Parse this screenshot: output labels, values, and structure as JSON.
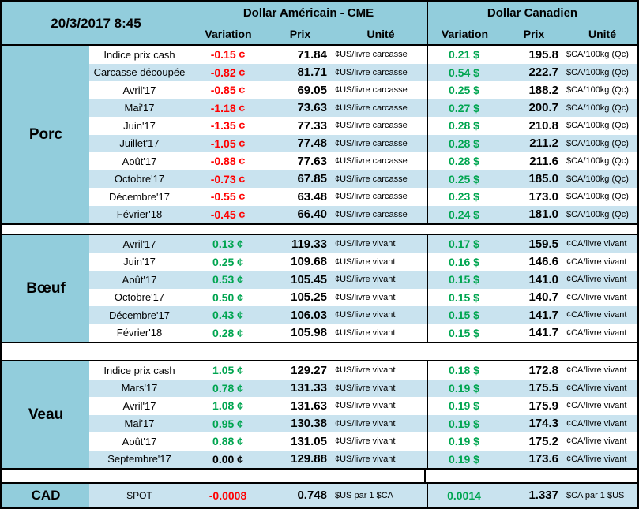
{
  "header": {
    "datetime": "20/3/2017 8:45",
    "us": {
      "title": "Dollar Américain - CME",
      "cols": [
        "Variation",
        "Prix",
        "Unité"
      ]
    },
    "ca": {
      "title": "Dollar Canadien",
      "cols": [
        "Variation",
        "Prix",
        "Unité"
      ]
    }
  },
  "colors": {
    "header_blue": "#92CDDC",
    "stripe_blue": "#C9E3EF",
    "negative": "#FF0000",
    "positive": "#00A550",
    "neutral": "#000000"
  },
  "sections": [
    {
      "name": "Porc",
      "stripe_offset": 1,
      "rows": [
        {
          "label": "Indice prix cash",
          "us_var": "-0.15 ¢",
          "us_prix": "71.84",
          "us_unit": "¢US/livre carcasse",
          "ca_var": "0.21 $",
          "ca_prix": "195.8",
          "ca_unit": "$CA/100kg (Qc)"
        },
        {
          "label": "Carcasse découpée",
          "us_var": "-0.82 ¢",
          "us_prix": "81.71",
          "us_unit": "¢US/livre carcasse",
          "ca_var": "0.54 $",
          "ca_prix": "222.7",
          "ca_unit": "$CA/100kg (Qc)"
        },
        {
          "label": "Avril'17",
          "us_var": "-0.85 ¢",
          "us_prix": "69.05",
          "us_unit": "¢US/livre carcasse",
          "ca_var": "0.25 $",
          "ca_prix": "188.2",
          "ca_unit": "$CA/100kg (Qc)"
        },
        {
          "label": "Mai'17",
          "us_var": "-1.18 ¢",
          "us_prix": "73.63",
          "us_unit": "¢US/livre carcasse",
          "ca_var": "0.27 $",
          "ca_prix": "200.7",
          "ca_unit": "$CA/100kg (Qc)"
        },
        {
          "label": "Juin'17",
          "us_var": "-1.35 ¢",
          "us_prix": "77.33",
          "us_unit": "¢US/livre carcasse",
          "ca_var": "0.28 $",
          "ca_prix": "210.8",
          "ca_unit": "$CA/100kg (Qc)"
        },
        {
          "label": "Juillet'17",
          "us_var": "-1.05 ¢",
          "us_prix": "77.48",
          "us_unit": "¢US/livre carcasse",
          "ca_var": "0.28 $",
          "ca_prix": "211.2",
          "ca_unit": "$CA/100kg (Qc)"
        },
        {
          "label": "Août'17",
          "us_var": "-0.88 ¢",
          "us_prix": "77.63",
          "us_unit": "¢US/livre carcasse",
          "ca_var": "0.28 $",
          "ca_prix": "211.6",
          "ca_unit": "$CA/100kg (Qc)"
        },
        {
          "label": "Octobre'17",
          "us_var": "-0.73 ¢",
          "us_prix": "67.85",
          "us_unit": "¢US/livre carcasse",
          "ca_var": "0.25 $",
          "ca_prix": "185.0",
          "ca_unit": "$CA/100kg (Qc)"
        },
        {
          "label": "Décembre'17",
          "us_var": "-0.55 ¢",
          "us_prix": "63.48",
          "us_unit": "¢US/livre carcasse",
          "ca_var": "0.23 $",
          "ca_prix": "173.0",
          "ca_unit": "$CA/100kg (Qc)"
        },
        {
          "label": "Février'18",
          "us_var": "-0.45 ¢",
          "us_prix": "66.40",
          "us_unit": "¢US/livre carcasse",
          "ca_var": "0.24 $",
          "ca_prix": "181.0",
          "ca_unit": "$CA/100kg (Qc)"
        }
      ]
    },
    {
      "name": "Bœuf",
      "stripe_offset": 0,
      "rows": [
        {
          "label": "Avril'17",
          "us_var": "0.13 ¢",
          "us_prix": "119.33",
          "us_unit": "¢US/livre vivant",
          "ca_var": "0.17 $",
          "ca_prix": "159.5",
          "ca_unit": "¢CA/livre vivant"
        },
        {
          "label": "Juin'17",
          "us_var": "0.25 ¢",
          "us_prix": "109.68",
          "us_unit": "¢US/livre vivant",
          "ca_var": "0.16 $",
          "ca_prix": "146.6",
          "ca_unit": "¢CA/livre vivant"
        },
        {
          "label": "Août'17",
          "us_var": "0.53 ¢",
          "us_prix": "105.45",
          "us_unit": "¢US/livre vivant",
          "ca_var": "0.15 $",
          "ca_prix": "141.0",
          "ca_unit": "¢CA/livre vivant"
        },
        {
          "label": "Octobre'17",
          "us_var": "0.50 ¢",
          "us_prix": "105.25",
          "us_unit": "¢US/livre vivant",
          "ca_var": "0.15 $",
          "ca_prix": "140.7",
          "ca_unit": "¢CA/livre vivant"
        },
        {
          "label": "Décembre'17",
          "us_var": "0.43 ¢",
          "us_prix": "106.03",
          "us_unit": "¢US/livre vivant",
          "ca_var": "0.15 $",
          "ca_prix": "141.7",
          "ca_unit": "¢CA/livre vivant"
        },
        {
          "label": "Février'18",
          "us_var": "0.28 ¢",
          "us_prix": "105.98",
          "us_unit": "¢US/livre vivant",
          "ca_var": "0.15 $",
          "ca_prix": "141.7",
          "ca_unit": "¢CA/livre vivant"
        }
      ]
    },
    {
      "name": "Veau",
      "stripe_offset": 1,
      "rows": [
        {
          "label": "Indice prix cash",
          "us_var": "1.05 ¢",
          "us_prix": "129.27",
          "us_unit": "¢US/livre vivant",
          "ca_var": "0.18 $",
          "ca_prix": "172.8",
          "ca_unit": "¢CA/livre vivant"
        },
        {
          "label": "Mars'17",
          "us_var": "0.78 ¢",
          "us_prix": "131.33",
          "us_unit": "¢US/livre vivant",
          "ca_var": "0.19 $",
          "ca_prix": "175.5",
          "ca_unit": "¢CA/livre vivant"
        },
        {
          "label": "Avril'17",
          "us_var": "1.08 ¢",
          "us_prix": "131.63",
          "us_unit": "¢US/livre vivant",
          "ca_var": "0.19 $",
          "ca_prix": "175.9",
          "ca_unit": "¢CA/livre vivant"
        },
        {
          "label": "Mai'17",
          "us_var": "0.95 ¢",
          "us_prix": "130.38",
          "us_unit": "¢US/livre vivant",
          "ca_var": "0.19 $",
          "ca_prix": "174.3",
          "ca_unit": "¢CA/livre vivant"
        },
        {
          "label": "Août'17",
          "us_var": "0.88 ¢",
          "us_prix": "131.05",
          "us_unit": "¢US/livre vivant",
          "ca_var": "0.19 $",
          "ca_prix": "175.2",
          "ca_unit": "¢CA/livre vivant"
        },
        {
          "label": "Septembre'17",
          "us_var": "0.00 ¢",
          "us_prix": "129.88",
          "us_unit": "¢US/livre vivant",
          "ca_var": "0.19 $",
          "ca_prix": "173.6",
          "ca_unit": "¢CA/livre vivant"
        }
      ]
    }
  ],
  "cad": {
    "label": "CAD",
    "row_label": "SPOT",
    "us_var": "-0.0008",
    "us_prix": "0.748",
    "us_unit": "$US par 1 $CA",
    "ca_var": "0.0014",
    "ca_prix": "1.337",
    "ca_unit": "$CA par 1 $US"
  }
}
